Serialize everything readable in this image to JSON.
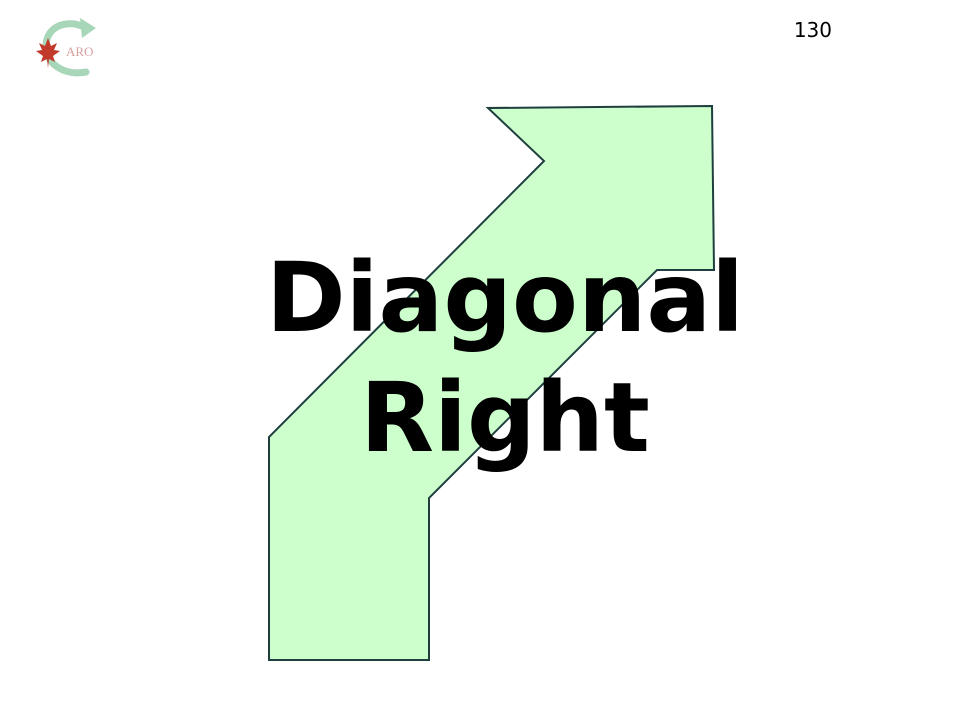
{
  "logo": {
    "text": "ARO",
    "icon": "maple-leaf-recycle-arrow-logo",
    "colors": {
      "leaf": "#c0392b",
      "arrow": "#9fcfaf"
    }
  },
  "page_number": "130",
  "slide": {
    "title_line1": "Diagonal",
    "title_line2": "Right",
    "arrow_icon": "diagonal-right-arrow",
    "arrow_fill": "#ccffcc",
    "arrow_stroke": "#1f3f3f"
  }
}
